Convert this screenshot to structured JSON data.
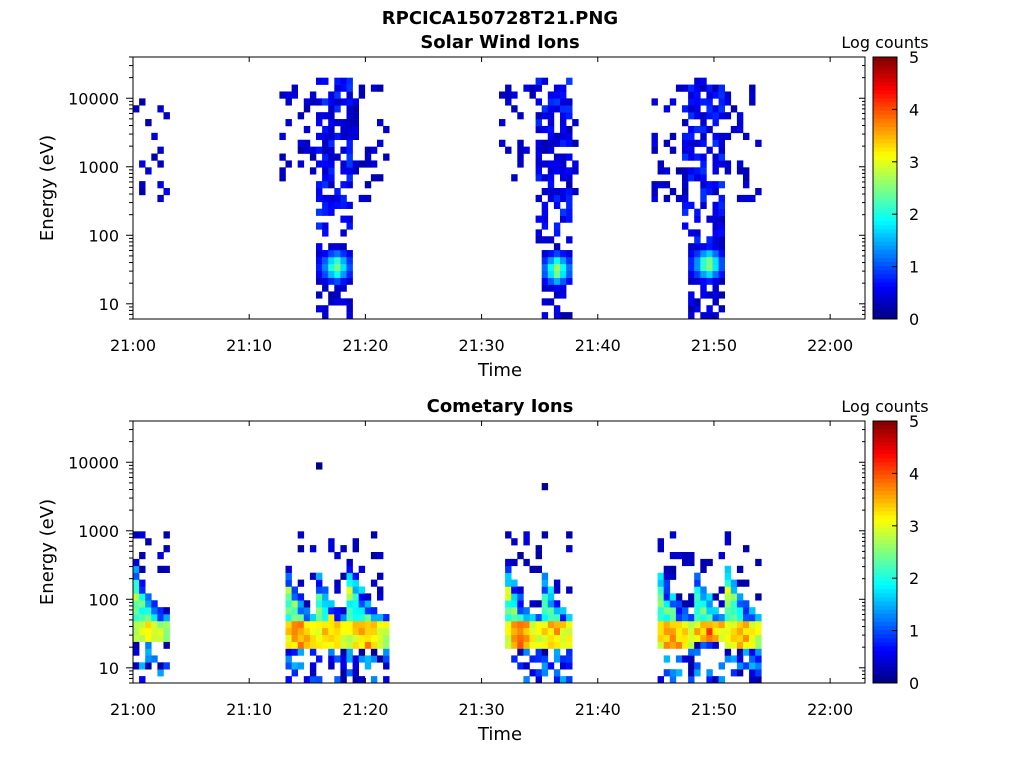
{
  "figure_title": "RPCICA150728T21.PNG",
  "chart_data": [
    {
      "type": "heatmap",
      "title": "Solar Wind Ions",
      "xlabel": "Time",
      "ylabel": "Energy (eV)",
      "xlim": [
        "21:00",
        "22:03"
      ],
      "ylim": [
        6,
        40000
      ],
      "y_scale": "log",
      "x_ticks": [
        "21:00",
        "21:10",
        "21:20",
        "21:30",
        "21:40",
        "21:50",
        "22:00"
      ],
      "y_ticks": [
        "10",
        "100",
        "1000",
        "10000"
      ],
      "colorbar": {
        "label": "Log counts",
        "range": [
          0,
          5
        ],
        "ticks": [
          "0",
          "1",
          "2",
          "3",
          "4",
          "5"
        ],
        "colormap": "jet"
      },
      "features": [
        {
          "kind": "scatter",
          "t_start": "21:00",
          "t_end": "21:03",
          "e_min": 300,
          "e_max": 11000,
          "density": 0.25,
          "cmin": 0.2,
          "cmax": 0.5
        },
        {
          "kind": "scatter",
          "t_start": "21:12.5",
          "t_end": "21:22",
          "e_min": 300,
          "e_max": 16000,
          "density": 0.22,
          "cmin": 0.2,
          "cmax": 0.5
        },
        {
          "kind": "scatter",
          "t_start": "21:15.5",
          "t_end": "21:19",
          "e_min": 100,
          "e_max": 20000,
          "density": 0.6,
          "cmin": 0.3,
          "cmax": 0.9
        },
        {
          "kind": "scatter",
          "t_start": "21:31.5",
          "t_end": "21:38.5",
          "e_min": 300,
          "e_max": 20000,
          "density": 0.22,
          "cmin": 0.2,
          "cmax": 0.5
        },
        {
          "kind": "scatter",
          "t_start": "21:34.5",
          "t_end": "21:38",
          "e_min": 80,
          "e_max": 20000,
          "density": 0.6,
          "cmin": 0.3,
          "cmax": 0.9
        },
        {
          "kind": "scatter",
          "t_start": "21:44.5",
          "t_end": "21:54",
          "e_min": 300,
          "e_max": 16000,
          "density": 0.22,
          "cmin": 0.2,
          "cmax": 0.5
        },
        {
          "kind": "scatter",
          "t_start": "21:47.5",
          "t_end": "21:51",
          "e_min": 80,
          "e_max": 20000,
          "density": 0.6,
          "cmin": 0.3,
          "cmax": 0.9
        },
        {
          "kind": "core",
          "t_start": "21:16",
          "t_end": "21:19",
          "e_min": 6,
          "e_max": 80,
          "peak_e": 35,
          "peak_c": 2.6
        },
        {
          "kind": "core",
          "t_start": "21:35",
          "t_end": "21:38",
          "e_min": 6,
          "e_max": 90,
          "peak_e": 32,
          "peak_c": 2.7
        },
        {
          "kind": "core",
          "t_start": "21:48",
          "t_end": "21:51",
          "e_min": 6,
          "e_max": 80,
          "peak_e": 38,
          "peak_c": 2.8
        }
      ]
    },
    {
      "type": "heatmap",
      "title": "Cometary Ions",
      "xlabel": "Time",
      "ylabel": "Energy (eV)",
      "xlim": [
        "21:00",
        "22:03"
      ],
      "ylim": [
        6,
        40000
      ],
      "y_scale": "log",
      "x_ticks": [
        "21:00",
        "21:10",
        "21:20",
        "21:30",
        "21:40",
        "21:50",
        "22:00"
      ],
      "y_ticks": [
        "10",
        "100",
        "1000",
        "10000"
      ],
      "colorbar": {
        "label": "Log counts",
        "range": [
          0,
          5
        ],
        "ticks": [
          "0",
          "1",
          "2",
          "3",
          "4",
          "5"
        ],
        "colormap": "jet"
      },
      "features": [
        {
          "kind": "burst",
          "t_start": "21:00",
          "t_end": "21:03",
          "e_top": 1200,
          "peak_e": 35,
          "peak_c": 3.6
        },
        {
          "kind": "burst",
          "t_start": "21:13",
          "t_end": "21:16",
          "e_top": 1000,
          "peak_e": 32,
          "peak_c": 4.0
        },
        {
          "kind": "burst",
          "t_start": "21:15.5",
          "t_end": "21:18.5",
          "e_top": 1000,
          "peak_e": 32,
          "peak_c": 3.8
        },
        {
          "kind": "burst",
          "t_start": "21:18.5",
          "t_end": "21:22",
          "e_top": 1000,
          "peak_e": 32,
          "peak_c": 3.9
        },
        {
          "kind": "burst",
          "t_start": "21:32",
          "t_end": "21:35",
          "e_top": 1000,
          "peak_e": 32,
          "peak_c": 4.0
        },
        {
          "kind": "burst",
          "t_start": "21:35",
          "t_end": "21:38",
          "e_top": 1000,
          "peak_e": 30,
          "peak_c": 3.9
        },
        {
          "kind": "burst",
          "t_start": "21:45",
          "t_end": "21:48.5",
          "e_top": 1000,
          "peak_e": 32,
          "peak_c": 4.0
        },
        {
          "kind": "burst",
          "t_start": "21:48.5",
          "t_end": "21:51",
          "e_top": 500,
          "peak_e": 35,
          "peak_c": 4.3
        },
        {
          "kind": "burst",
          "t_start": "21:51",
          "t_end": "21:54",
          "e_top": 1000,
          "peak_e": 32,
          "peak_c": 4.0
        },
        {
          "kind": "point",
          "t": "21:16",
          "e": 8500,
          "c": 0.1
        },
        {
          "kind": "point",
          "t": "21:35.5",
          "e": 4500,
          "c": 0.1
        }
      ]
    }
  ]
}
